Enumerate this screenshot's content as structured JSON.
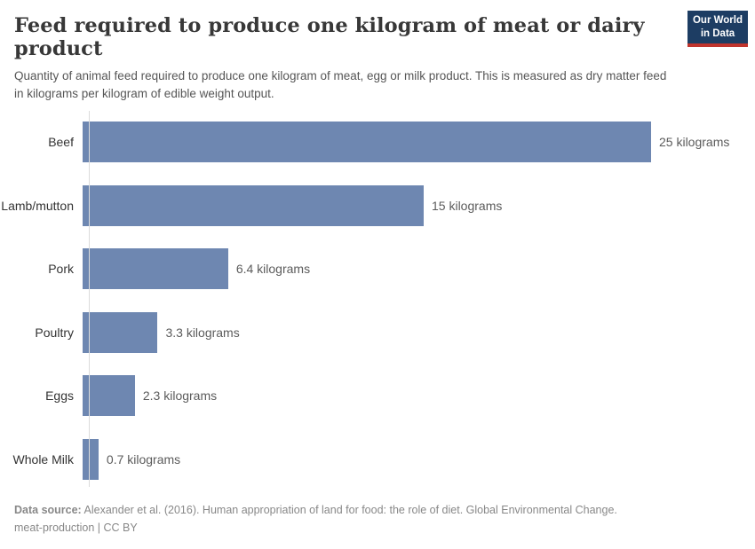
{
  "header": {
    "title": "Feed required to produce one kilogram of meat or dairy product",
    "subtitle": "Quantity of animal feed required to produce one kilogram of meat, egg or milk product. This is measured as dry matter feed in kilograms per kilogram of edible weight output.",
    "logo": {
      "line1": "Our World",
      "line2": "in Data",
      "background_color": "#1d3d63",
      "accent_color": "#c0342d"
    }
  },
  "chart_data": {
    "type": "bar",
    "orientation": "horizontal",
    "title": "Feed required to produce one kilogram of meat or dairy product",
    "categories": [
      "Beef",
      "Lamb/mutton",
      "Pork",
      "Poultry",
      "Eggs",
      "Whole Milk"
    ],
    "values": [
      25,
      15,
      6.4,
      3.3,
      2.3,
      0.7
    ],
    "value_labels": [
      "25 kilograms",
      "15 kilograms",
      "6.4 kilograms",
      "3.3 kilograms",
      "2.3 kilograms",
      "0.7 kilograms"
    ],
    "unit": "kilograms",
    "xlabel": "",
    "ylabel": "",
    "xlim": [
      0,
      25
    ],
    "grid": false,
    "legend": "none",
    "bar_color": "#6e87b1"
  },
  "footer": {
    "source_label": "Data source:",
    "source_text": " Alexander et al. (2016). Human appropriation of land for food: the role of diet. Global Environmental Change.",
    "note": "meat-production | CC BY"
  }
}
